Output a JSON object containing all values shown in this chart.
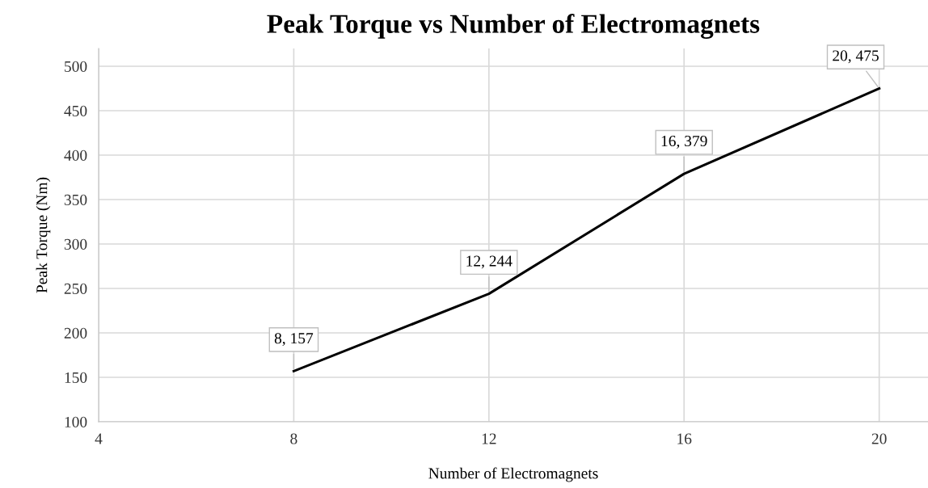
{
  "chart_data": {
    "type": "line",
    "title": "Peak Torque vs Number of Electromagnets",
    "xlabel": "Number of Electromagnets",
    "ylabel": "Peak Torque (Nm)",
    "x": [
      8,
      12,
      16,
      20
    ],
    "series": [
      {
        "color": "#000000",
        "values": [
          157,
          244,
          379,
          475
        ]
      }
    ],
    "xlim": [
      4,
      21
    ],
    "xticks": [
      4,
      8,
      12,
      16,
      20
    ],
    "ylim": [
      100,
      520
    ],
    "yticks": [
      100,
      150,
      200,
      250,
      300,
      350,
      400,
      450,
      500
    ],
    "grid": true,
    "marker": "none",
    "line_style": "solid",
    "legend": false,
    "annotations": [
      {
        "text": "8, 157",
        "x": 8,
        "y": 157
      },
      {
        "text": "12, 244",
        "x": 12,
        "y": 244
      },
      {
        "text": "16, 379",
        "x": 16,
        "y": 379
      },
      {
        "text": "20, 475",
        "x": 20,
        "y": 475
      }
    ]
  }
}
